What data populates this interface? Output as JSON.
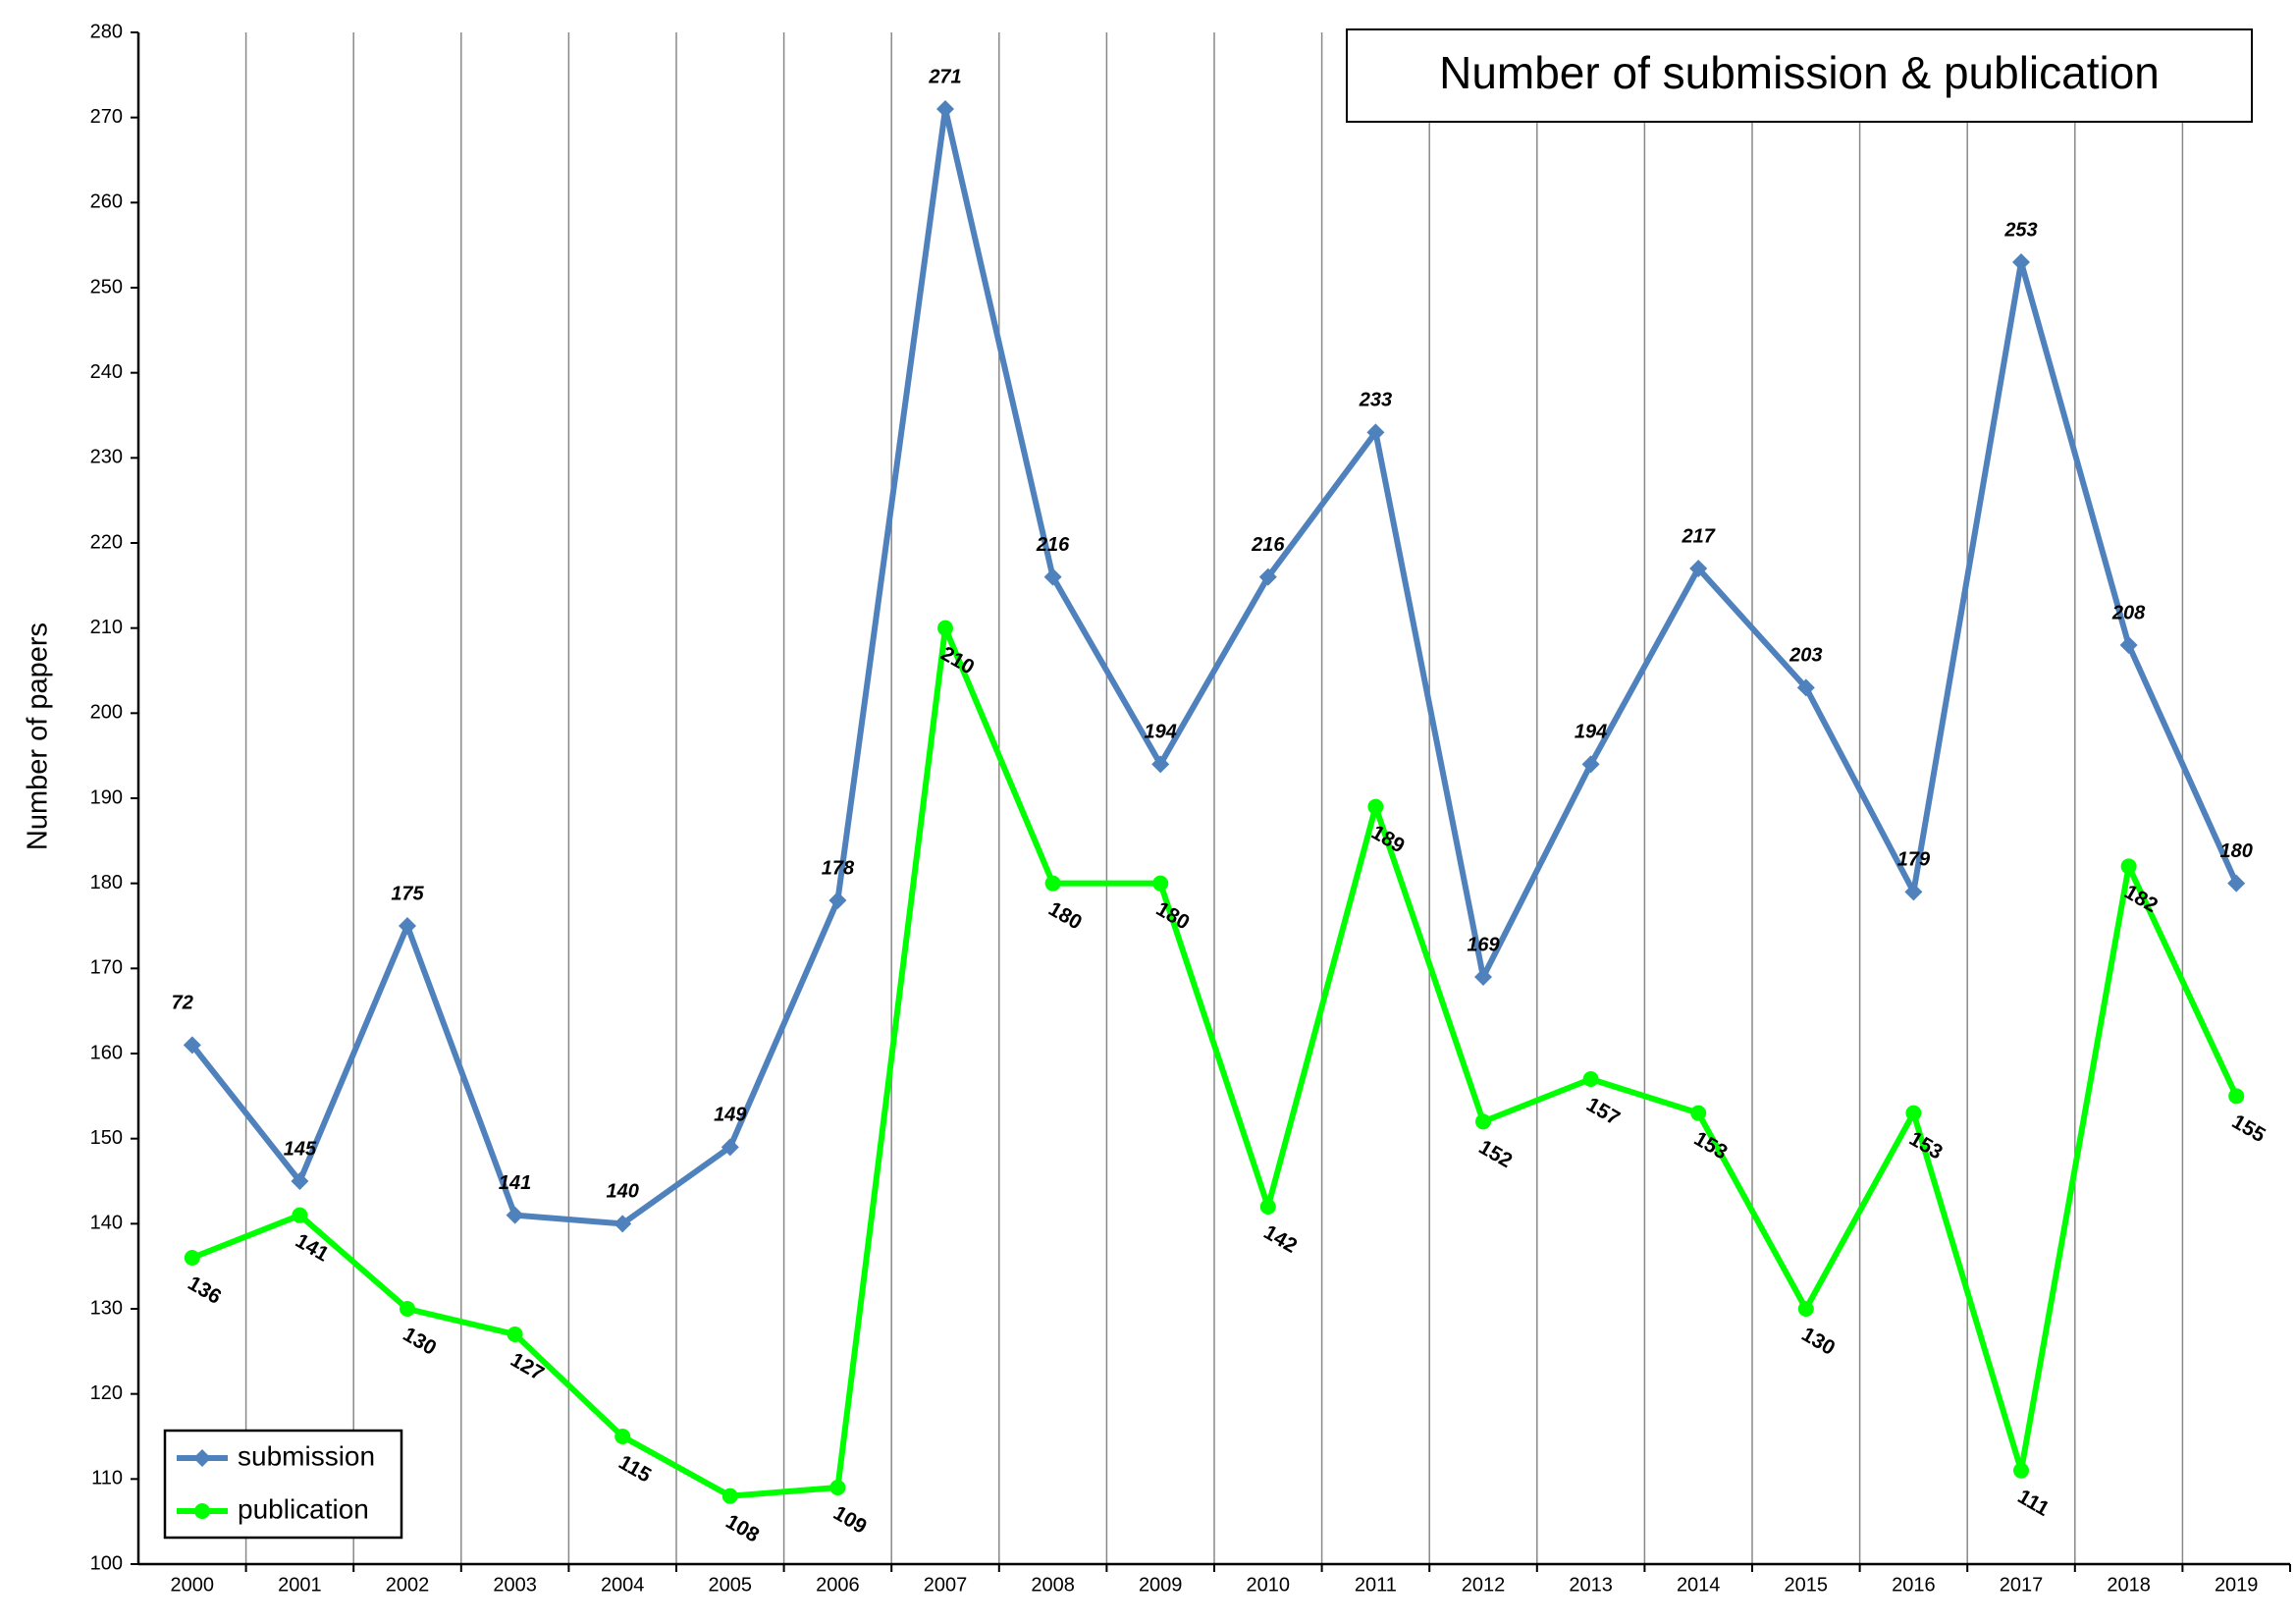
{
  "chart_data": {
    "type": "line",
    "title": "Number of submission & publication",
    "y_label": "Number of papers",
    "categories": [
      "2000",
      "2001",
      "2002",
      "2003",
      "2004",
      "2005",
      "2006",
      "2007",
      "2008",
      "2009",
      "2010",
      "2011",
      "2012",
      "2013",
      "2014",
      "2015",
      "2016",
      "2017",
      "2018",
      "2019"
    ],
    "series": [
      {
        "name": "submission",
        "color": "#4f81bd",
        "marker": "diamond",
        "values": [
          161,
          145,
          175,
          141,
          140,
          149,
          178,
          271,
          216,
          194,
          216,
          233,
          169,
          194,
          217,
          203,
          179,
          253,
          208,
          180
        ],
        "value_labels": [
          null,
          "145",
          "175",
          "141",
          "140",
          "149",
          "178",
          "271",
          "216",
          "194",
          "216",
          "233",
          "169",
          "194",
          "217",
          "203",
          "179",
          "253",
          "208",
          "180"
        ]
      },
      {
        "name": "publication",
        "color": "#00ff00",
        "marker": "circle",
        "values": [
          136,
          141,
          130,
          127,
          115,
          108,
          109,
          210,
          180,
          180,
          142,
          189,
          152,
          157,
          153,
          130,
          153,
          111,
          182,
          155
        ]
      }
    ],
    "annotations": [
      "72"
    ],
    "ylim": [
      100,
      280
    ],
    "yticks": [
      100,
      110,
      120,
      130,
      140,
      150,
      160,
      170,
      180,
      190,
      200,
      210,
      220,
      230,
      240,
      250,
      260,
      270,
      280
    ],
    "legend": "lower left"
  }
}
